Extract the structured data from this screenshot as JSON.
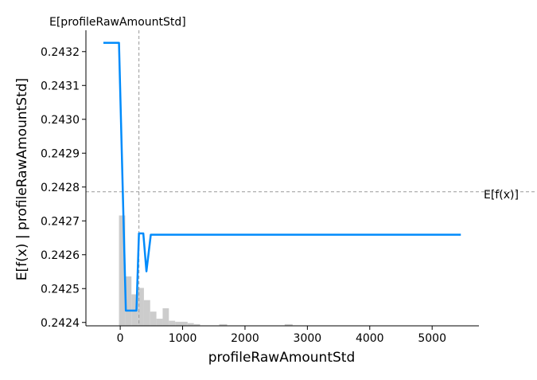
{
  "chart_data": {
    "type": "line",
    "title": "",
    "xlabel": "profileRawAmountStd",
    "ylabel": "E[f(x) | profileRawAmountStd]",
    "xlim": [
      -550,
      5750
    ],
    "ylim": [
      0.24239,
      0.243263
    ],
    "x_ticks": [
      0,
      1000,
      2000,
      3000,
      4000,
      5000
    ],
    "y_ticks": [
      0.2424,
      0.2425,
      0.2426,
      0.2427,
      0.2428,
      0.2429,
      0.243,
      0.2431,
      0.2432
    ],
    "y_tick_labels": [
      "0.2424",
      "0.2425",
      "0.2426",
      "0.2427",
      "0.2428",
      "0.2429",
      "0.2430",
      "0.2431",
      "0.2432"
    ],
    "grid": false,
    "series": [
      {
        "color": "#008bfb",
        "x": [
          -270,
          -20,
          90,
          260,
          300,
          370,
          420,
          490,
          540,
          5460
        ],
        "y": [
          0.243226,
          0.243226,
          0.242435,
          0.242435,
          0.242663,
          0.242663,
          0.242551,
          0.242659,
          0.242659,
          0.242659
        ]
      }
    ],
    "histogram": {
      "color": "#cccccc",
      "bin_edges": [
        -20,
        80,
        180,
        280,
        380,
        480,
        580,
        680,
        780,
        880,
        980,
        1080,
        1180,
        1280
      ],
      "heights": [
        0.242716,
        0.242536,
        0.242483,
        0.242502,
        0.242466,
        0.242432,
        0.242411,
        0.242442,
        0.242405,
        0.242402,
        0.242402,
        0.242398,
        0.242395
      ],
      "sparse_x": [
        1650,
        2700
      ],
      "sparse_top": 0.242395
    },
    "expected_x": {
      "label": "E[profileRawAmountStd]",
      "value": 300
    },
    "expected_y": {
      "label": "E[f(x)]",
      "value": 0.242786
    },
    "colors": {
      "line": "#008bfb",
      "histogram": "#cccccc",
      "reference": "#999999",
      "axes": "#000000"
    }
  }
}
